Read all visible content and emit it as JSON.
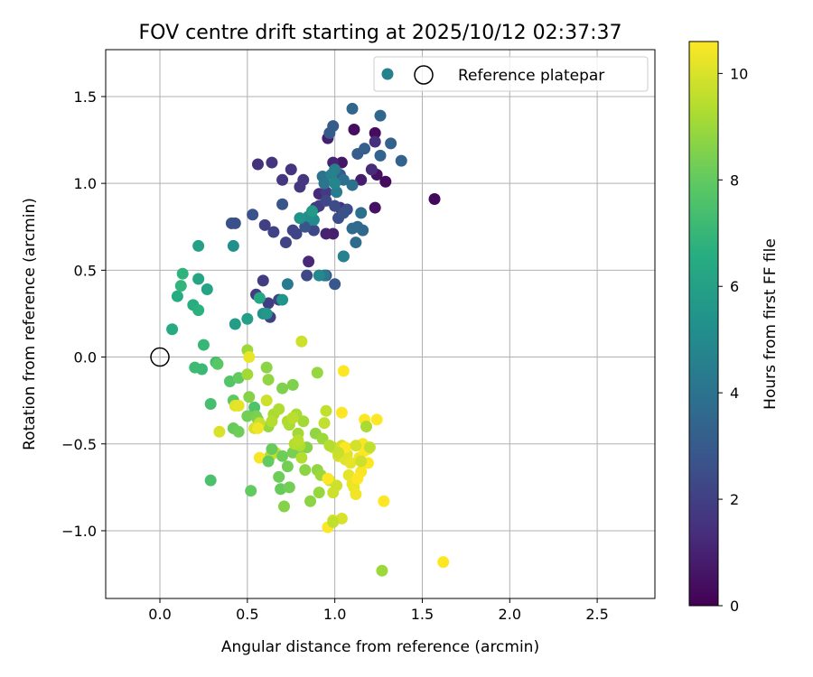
{
  "chart_data": {
    "type": "scatter",
    "title": "FOV centre drift starting at 2025/10/12 02:37:37",
    "xlabel": "Angular distance from reference (arcmin)",
    "ylabel": "Rotation from reference (arcmin)",
    "xlim": [
      -0.31,
      2.83
    ],
    "ylim": [
      -1.39,
      1.77
    ],
    "xticks": [
      0.0,
      0.5,
      1.0,
      1.5,
      2.0,
      2.5
    ],
    "xtick_labels": [
      "0.0",
      "0.5",
      "1.0",
      "1.5",
      "2.0",
      "2.5"
    ],
    "yticks": [
      -1.0,
      -0.5,
      0.0,
      0.5,
      1.0,
      1.5
    ],
    "ytick_labels": [
      "−1.0",
      "−0.5",
      "0.0",
      "0.5",
      "1.0",
      "1.5"
    ],
    "grid": true,
    "legend": {
      "placement": "top-right",
      "entries": [
        "Reference platepar"
      ]
    },
    "reference_marker": {
      "x": 0.0,
      "y": 0.0
    },
    "colorbar": {
      "label": "Hours from first FF file",
      "colormap": "viridis",
      "range": [
        0,
        10.6
      ],
      "ticks": [
        0,
        2,
        4,
        6,
        8,
        10
      ],
      "tick_labels": [
        "0",
        "2",
        "4",
        "6",
        "8",
        "10"
      ]
    },
    "points": [
      [
        1.57,
        0.91,
        0.2
      ],
      [
        1.29,
        1.01,
        0.3
      ],
      [
        1.23,
        1.29,
        0.3
      ],
      [
        1.11,
        1.31,
        0.4
      ],
      [
        1.23,
        0.86,
        0.5
      ],
      [
        1.24,
        1.05,
        0.5
      ],
      [
        1.04,
        1.12,
        0.6
      ],
      [
        1.05,
        0.58,
        0.7
      ],
      [
        1.15,
        1.02,
        0.8
      ],
      [
        0.96,
        1.26,
        0.9
      ],
      [
        0.99,
        0.71,
        0.9
      ],
      [
        0.95,
        0.71,
        1.0
      ],
      [
        0.99,
        1.12,
        1.1
      ],
      [
        0.91,
        0.94,
        1.2
      ],
      [
        0.85,
        0.55,
        1.2
      ],
      [
        1.21,
        1.08,
        1.3
      ],
      [
        1.23,
        1.24,
        1.4
      ],
      [
        1.03,
        0.86,
        1.4
      ],
      [
        0.56,
        1.11,
        1.5
      ],
      [
        0.64,
        1.12,
        1.6
      ],
      [
        0.75,
        1.08,
        1.6
      ],
      [
        0.8,
        0.98,
        1.7
      ],
      [
        0.82,
        1.02,
        1.7
      ],
      [
        0.7,
        1.02,
        1.7
      ],
      [
        0.89,
        0.86,
        1.7
      ],
      [
        0.95,
        0.95,
        1.8
      ],
      [
        0.91,
        0.87,
        1.9
      ],
      [
        0.59,
        0.44,
        1.9
      ],
      [
        0.55,
        0.36,
        1.9
      ],
      [
        0.62,
        0.31,
        1.9
      ],
      [
        0.63,
        0.23,
        2.0
      ],
      [
        0.6,
        0.76,
        2.0
      ],
      [
        0.68,
        0.33,
        2.1
      ],
      [
        0.65,
        0.72,
        2.1
      ],
      [
        0.72,
        0.66,
        2.1
      ],
      [
        0.76,
        0.73,
        2.2
      ],
      [
        0.78,
        0.71,
        2.2
      ],
      [
        0.84,
        0.47,
        2.3
      ],
      [
        0.88,
        0.73,
        2.3
      ],
      [
        0.95,
        0.9,
        2.3
      ],
      [
        1.0,
        0.87,
        2.4
      ],
      [
        1.02,
        0.8,
        2.5
      ],
      [
        1.07,
        0.85,
        2.5
      ],
      [
        1.05,
        0.83,
        2.6
      ],
      [
        0.41,
        0.77,
        2.6
      ],
      [
        0.43,
        0.77,
        2.6
      ],
      [
        0.53,
        0.82,
        2.7
      ],
      [
        0.7,
        0.88,
        2.8
      ],
      [
        0.83,
        0.75,
        2.8
      ],
      [
        0.95,
        0.47,
        2.9
      ],
      [
        1.0,
        0.42,
        2.9
      ],
      [
        0.97,
        1.29,
        3.0
      ],
      [
        0.99,
        1.33,
        3.0
      ],
      [
        1.03,
        1.05,
        3.1
      ],
      [
        1.13,
        1.17,
        3.1
      ],
      [
        1.17,
        1.2,
        3.2
      ],
      [
        1.32,
        1.23,
        3.3
      ],
      [
        1.38,
        1.13,
        3.3
      ],
      [
        1.26,
        1.16,
        3.4
      ],
      [
        1.1,
        1.43,
        3.5
      ],
      [
        1.26,
        1.39,
        3.5
      ],
      [
        1.13,
        0.75,
        3.6
      ],
      [
        1.16,
        0.73,
        3.6
      ],
      [
        1.1,
        0.74,
        3.7
      ],
      [
        1.12,
        0.66,
        3.7
      ],
      [
        1.05,
        1.02,
        3.8
      ],
      [
        1.1,
        0.99,
        3.9
      ],
      [
        1.15,
        0.83,
        3.9
      ],
      [
        0.93,
        1.04,
        4.0
      ],
      [
        0.94,
        1.0,
        4.1
      ],
      [
        0.94,
        0.47,
        4.2
      ],
      [
        0.73,
        0.42,
        4.3
      ],
      [
        1.01,
        0.95,
        4.4
      ],
      [
        1.0,
        1.08,
        4.5
      ],
      [
        0.98,
        1.05,
        4.6
      ],
      [
        1.05,
        0.58,
        4.7
      ],
      [
        1.0,
        1.0,
        4.8
      ],
      [
        0.91,
        0.47,
        4.9
      ],
      [
        0.88,
        0.79,
        5.0
      ],
      [
        0.85,
        0.81,
        5.1
      ],
      [
        0.42,
        0.64,
        5.2
      ],
      [
        0.59,
        0.25,
        5.3
      ],
      [
        0.8,
        0.8,
        5.4
      ],
      [
        0.7,
        0.33,
        5.5
      ],
      [
        0.61,
        0.25,
        5.6
      ],
      [
        0.87,
        0.84,
        5.7
      ],
      [
        0.43,
        0.19,
        5.8
      ],
      [
        0.5,
        0.22,
        5.9
      ],
      [
        0.22,
        0.64,
        6.0
      ],
      [
        0.27,
        0.39,
        6.1
      ],
      [
        0.22,
        0.45,
        6.2
      ],
      [
        0.57,
        0.34,
        6.3
      ],
      [
        0.07,
        0.16,
        6.4
      ],
      [
        0.1,
        0.35,
        6.5
      ],
      [
        0.19,
        0.3,
        6.6
      ],
      [
        0.22,
        0.27,
        6.7
      ],
      [
        0.13,
        0.48,
        6.8
      ],
      [
        0.12,
        0.41,
        6.9
      ],
      [
        0.25,
        0.07,
        7.0
      ],
      [
        0.24,
        -0.07,
        7.1
      ],
      [
        0.2,
        -0.06,
        7.2
      ],
      [
        0.32,
        -0.03,
        7.3
      ],
      [
        0.29,
        -0.27,
        7.4
      ],
      [
        0.29,
        -0.71,
        7.5
      ],
      [
        0.54,
        -0.29,
        7.6
      ],
      [
        0.4,
        -0.14,
        7.7
      ],
      [
        0.33,
        -0.04,
        7.8
      ],
      [
        0.42,
        -0.25,
        7.9
      ],
      [
        0.45,
        -0.12,
        8.0
      ],
      [
        0.42,
        -0.41,
        8.1
      ],
      [
        0.45,
        -0.43,
        8.2
      ],
      [
        0.5,
        -0.34,
        8.3
      ],
      [
        0.55,
        -0.34,
        8.4
      ],
      [
        0.56,
        -0.36,
        8.5
      ],
      [
        0.51,
        -0.23,
        8.6
      ],
      [
        0.61,
        -0.06,
        8.7
      ],
      [
        0.62,
        -0.13,
        8.8
      ],
      [
        0.62,
        -0.4,
        8.9
      ],
      [
        0.5,
        0.04,
        9.0
      ],
      [
        0.5,
        -0.1,
        9.1
      ],
      [
        0.65,
        -0.33,
        9.2
      ],
      [
        0.68,
        -0.3,
        9.3
      ],
      [
        0.64,
        -0.37,
        9.4
      ],
      [
        0.63,
        -0.57,
        9.5
      ],
      [
        0.66,
        -0.55,
        9.6
      ],
      [
        0.57,
        -0.38,
        9.7
      ],
      [
        0.61,
        -0.25,
        9.8
      ],
      [
        0.54,
        -0.41,
        9.9
      ],
      [
        0.34,
        -0.43,
        10.0
      ],
      [
        0.43,
        -0.28,
        10.1
      ],
      [
        0.45,
        -0.28,
        10.2
      ],
      [
        0.51,
        -0.0,
        10.3
      ],
      [
        0.56,
        -0.41,
        10.4
      ],
      [
        0.57,
        -0.58,
        10.5
      ],
      [
        0.52,
        -0.77,
        8.0
      ],
      [
        0.62,
        -0.6,
        8.0
      ],
      [
        0.64,
        -0.53,
        8.1
      ],
      [
        0.69,
        -0.76,
        8.1
      ],
      [
        0.7,
        -0.57,
        8.2
      ],
      [
        0.68,
        -0.69,
        8.2
      ],
      [
        0.73,
        -0.63,
        8.3
      ],
      [
        0.74,
        -0.75,
        8.3
      ],
      [
        0.76,
        -0.55,
        8.4
      ],
      [
        0.79,
        -0.53,
        8.4
      ],
      [
        0.7,
        -0.18,
        8.5
      ],
      [
        0.76,
        -0.16,
        8.5
      ],
      [
        0.71,
        -0.86,
        8.6
      ],
      [
        0.84,
        -0.52,
        8.6
      ],
      [
        0.83,
        -0.65,
        8.7
      ],
      [
        0.86,
        -0.83,
        8.7
      ],
      [
        0.89,
        -0.44,
        8.8
      ],
      [
        0.9,
        -0.65,
        8.8
      ],
      [
        0.9,
        -0.09,
        8.9
      ],
      [
        0.91,
        -0.78,
        8.9
      ],
      [
        0.92,
        -0.68,
        9.0
      ],
      [
        0.93,
        -0.47,
        9.0
      ],
      [
        0.82,
        -0.37,
        9.1
      ],
      [
        0.79,
        -0.44,
        9.1
      ],
      [
        0.78,
        -0.33,
        9.2
      ],
      [
        0.74,
        -0.39,
        9.2
      ],
      [
        0.73,
        -0.37,
        9.3
      ],
      [
        0.8,
        -0.51,
        9.3
      ],
      [
        0.81,
        -0.58,
        9.4
      ],
      [
        0.77,
        -0.5,
        9.4
      ],
      [
        0.76,
        -0.35,
        9.5
      ],
      [
        0.79,
        -0.48,
        9.5
      ],
      [
        0.94,
        -0.38,
        9.6
      ],
      [
        0.95,
        -0.31,
        9.6
      ],
      [
        0.97,
        -0.71,
        9.7
      ],
      [
        0.99,
        -0.52,
        9.7
      ],
      [
        0.99,
        -0.78,
        9.8
      ],
      [
        1.01,
        -0.74,
        9.8
      ],
      [
        1.02,
        -0.57,
        9.9
      ],
      [
        1.04,
        -0.51,
        9.9
      ],
      [
        1.04,
        -0.93,
        10.0
      ],
      [
        0.99,
        -0.94,
        10.0
      ],
      [
        1.06,
        -0.59,
        10.1
      ],
      [
        1.07,
        -0.56,
        10.1
      ],
      [
        1.08,
        -0.68,
        10.2
      ],
      [
        1.09,
        -0.61,
        10.2
      ],
      [
        1.1,
        -0.73,
        10.3
      ],
      [
        1.11,
        -0.75,
        10.3
      ],
      [
        1.12,
        -0.79,
        10.4
      ],
      [
        1.14,
        -0.58,
        10.4
      ],
      [
        1.15,
        -0.66,
        10.5
      ],
      [
        1.16,
        -0.5,
        10.5
      ],
      [
        1.17,
        -0.54,
        10.6
      ],
      [
        1.19,
        -0.53,
        10.6
      ],
      [
        1.17,
        -0.36,
        10.6
      ],
      [
        1.24,
        -0.36,
        10.6
      ],
      [
        1.19,
        -0.61,
        10.6
      ],
      [
        1.28,
        -0.83,
        10.6
      ],
      [
        1.04,
        -0.32,
        10.6
      ],
      [
        1.05,
        -0.08,
        10.6
      ],
      [
        0.96,
        -0.98,
        10.6
      ],
      [
        0.96,
        -0.7,
        10.6
      ],
      [
        1.13,
        -0.7,
        10.6
      ],
      [
        1.06,
        -0.52,
        10.6
      ],
      [
        1.62,
        -1.18,
        10.6
      ],
      [
        0.81,
        0.09,
        9.8
      ],
      [
        1.18,
        -0.4,
        9.2
      ],
      [
        1.27,
        -1.23,
        9.0
      ],
      [
        1.15,
        -0.6,
        9.8
      ],
      [
        1.2,
        -0.52,
        9.6
      ],
      [
        1.12,
        -0.51,
        9.9
      ],
      [
        1.02,
        -0.55,
        9.7
      ],
      [
        0.97,
        -0.51,
        9.4
      ],
      [
        0.99,
        -0.95,
        9.6
      ]
    ]
  }
}
